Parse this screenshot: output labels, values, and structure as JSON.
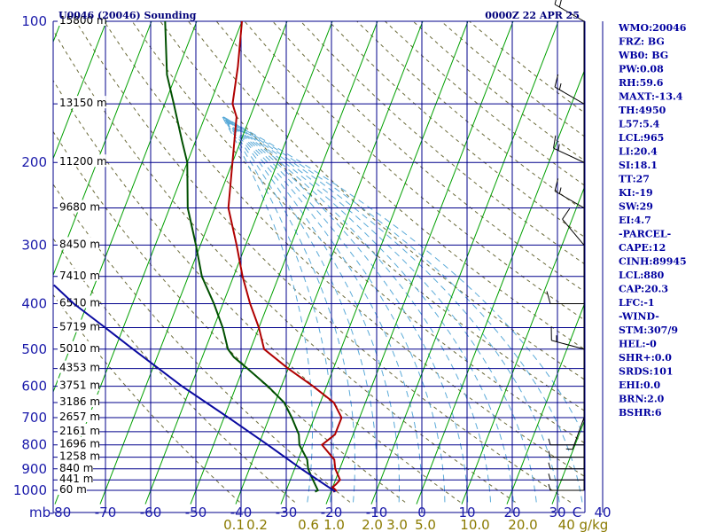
{
  "header": {
    "station": "U0046 (20046) Sounding",
    "time": "0000Z 22 APR 25"
  },
  "indices": [
    "WMO:20046",
    "FRZ: BG",
    "WB0: BG",
    "PW:0.08",
    "RH:59.6",
    "MAXT:-13.4",
    "TH:4950",
    "L57:5.4",
    "LCL:965",
    "LI:20.4",
    "SI:18.1",
    "TT:27",
    "KI:-19",
    "SW:29",
    "EI:4.7",
    "-PARCEL-",
    "CAPE:12",
    "CINH:89945",
    "LCL:880",
    "CAP:20.3",
    "LFC:-1",
    "-WIND-",
    "STM:307/9",
    "HEL:-0",
    "SHR+:0.0",
    "SRDS:101",
    "EHI:0.0",
    "BRN:2.0",
    "BSHR:6"
  ],
  "colors": {
    "grid": "#00008b",
    "isotherm_skew": "#00a000",
    "temperature": "#b00000",
    "dewpoint": "#005000",
    "parcel": "#0a0aa0",
    "dry_adiabat": "#6b6b3a",
    "moist_adiabat": "#5aaad8"
  },
  "chart_data": {
    "type": "line",
    "chart_kind": "skew-T log-p sounding",
    "y_unit_label": "mb",
    "x_unit_label": "C",
    "pressure_ticks": [
      "100",
      "200",
      "300",
      "400",
      "500",
      "600",
      "700",
      "800",
      "900",
      "1000"
    ],
    "temp_ticks": [
      "-80",
      "-70",
      "-60",
      "-50",
      "-40",
      "-30",
      "-20",
      "-10",
      "0",
      "10",
      "20",
      "30",
      "40"
    ],
    "mixing_ratio_labels": [
      "0.1",
      "0.2",
      "0.6",
      "1.0",
      "2.0",
      "3.0",
      "5.0",
      "10.0",
      "20.0",
      "40 g/kg"
    ],
    "height_labels": [
      {
        "p": 100,
        "label": "15800 m"
      },
      {
        "p": 150,
        "label": "13150 m"
      },
      {
        "p": 200,
        "label": "11200 m"
      },
      {
        "p": 250,
        "label": "9680 m"
      },
      {
        "p": 300,
        "label": "8450 m"
      },
      {
        "p": 350,
        "label": "7410 m"
      },
      {
        "p": 400,
        "label": "6510 m"
      },
      {
        "p": 450,
        "label": "5719 m"
      },
      {
        "p": 500,
        "label": "5010 m"
      },
      {
        "p": 550,
        "label": "4353 m"
      },
      {
        "p": 600,
        "label": "3751 m"
      },
      {
        "p": 650,
        "label": "3186 m"
      },
      {
        "p": 700,
        "label": "2657 m"
      },
      {
        "p": 750,
        "label": "2161 m"
      },
      {
        "p": 800,
        "label": "1696 m"
      },
      {
        "p": 850,
        "label": "1258 m"
      },
      {
        "p": 900,
        "label": "840 m"
      },
      {
        "p": 950,
        "label": "441 m"
      },
      {
        "p": 1000,
        "label": "60 m"
      }
    ],
    "series": [
      {
        "key": "temperature",
        "points": [
          {
            "p": 1007,
            "x": -19.5
          },
          {
            "p": 1000,
            "x": -19
          },
          {
            "p": 985,
            "x": -20
          },
          {
            "p": 970,
            "x": -19.5
          },
          {
            "p": 950,
            "x": -19
          },
          {
            "p": 900,
            "x": -21
          },
          {
            "p": 860,
            "x": -22
          },
          {
            "p": 800,
            "x": -26
          },
          {
            "p": 760,
            "x": -24
          },
          {
            "p": 700,
            "x": -24
          },
          {
            "p": 650,
            "x": -27
          },
          {
            "p": 600,
            "x": -33
          },
          {
            "p": 550,
            "x": -40
          },
          {
            "p": 500,
            "x": -47
          },
          {
            "p": 450,
            "x": -50
          },
          {
            "p": 400,
            "x": -54
          },
          {
            "p": 350,
            "x": -58
          },
          {
            "p": 300,
            "x": -62
          },
          {
            "p": 250,
            "x": -67
          },
          {
            "p": 200,
            "x": -70
          },
          {
            "p": 160,
            "x": -73
          },
          {
            "p": 150,
            "x": -75
          },
          {
            "p": 125,
            "x": -77
          },
          {
            "p": 100,
            "x": -80
          }
        ]
      },
      {
        "key": "dewpoint",
        "points": [
          {
            "p": 1007,
            "x": -23.5
          },
          {
            "p": 1000,
            "x": -23
          },
          {
            "p": 950,
            "x": -25
          },
          {
            "p": 900,
            "x": -27
          },
          {
            "p": 860,
            "x": -28
          },
          {
            "p": 800,
            "x": -31
          },
          {
            "p": 760,
            "x": -32
          },
          {
            "p": 700,
            "x": -35
          },
          {
            "p": 650,
            "x": -38
          },
          {
            "p": 600,
            "x": -43
          },
          {
            "p": 550,
            "x": -49
          },
          {
            "p": 520,
            "x": -53
          },
          {
            "p": 500,
            "x": -55
          },
          {
            "p": 450,
            "x": -58
          },
          {
            "p": 400,
            "x": -62
          },
          {
            "p": 350,
            "x": -67
          },
          {
            "p": 300,
            "x": -71
          },
          {
            "p": 250,
            "x": -76
          },
          {
            "p": 200,
            "x": -80
          },
          {
            "p": 180,
            "x": -83
          },
          {
            "p": 150,
            "x": -88
          },
          {
            "p": 130,
            "x": -92
          },
          {
            "p": 100,
            "x": -97
          }
        ]
      },
      {
        "key": "parcel",
        "points": [
          {
            "p": 1007,
            "x": -19
          },
          {
            "p": 900,
            "x": -28.5
          },
          {
            "p": 800,
            "x": -38
          },
          {
            "p": 700,
            "x": -49
          },
          {
            "p": 600,
            "x": -62
          },
          {
            "p": 500,
            "x": -76
          },
          {
            "p": 450,
            "x": -84
          },
          {
            "p": 400,
            "x": -93
          },
          {
            "p": 365,
            "x": -99
          }
        ]
      }
    ],
    "wind_barbs": [
      {
        "p": 100,
        "dir": 300,
        "kt": 20
      },
      {
        "p": 150,
        "dir": 300,
        "kt": 15
      },
      {
        "p": 200,
        "dir": 295,
        "kt": 15
      },
      {
        "p": 250,
        "dir": 300,
        "kt": 15
      },
      {
        "p": 300,
        "dir": 320,
        "kt": 10
      },
      {
        "p": 400,
        "dir": 270,
        "kt": 10
      },
      {
        "p": 500,
        "dir": 285,
        "kt": 15
      },
      {
        "p": 700,
        "dir": 200,
        "kt": 5
      },
      {
        "p": 800,
        "dir": 270,
        "kt": 5
      },
      {
        "p": 850,
        "dir": 270,
        "kt": 5
      },
      {
        "p": 900,
        "dir": 270,
        "kt": 5
      },
      {
        "p": 950,
        "dir": 270,
        "kt": 5
      },
      {
        "p": 1000,
        "dir": 270,
        "kt": 5
      }
    ]
  }
}
